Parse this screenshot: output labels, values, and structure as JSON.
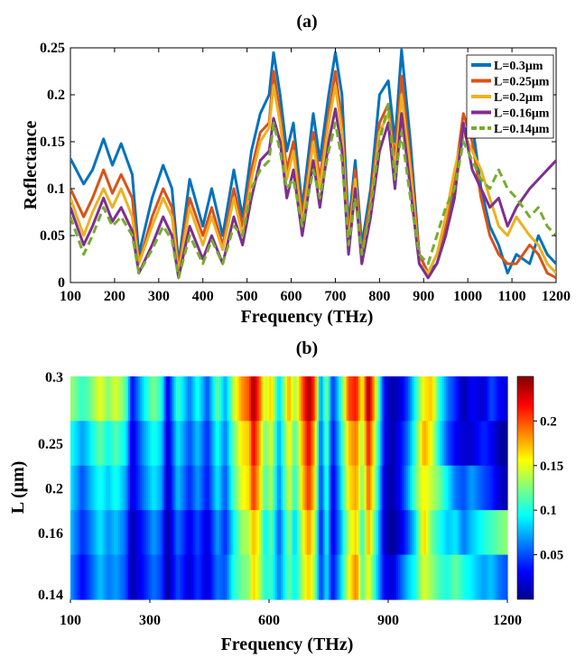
{
  "panel_a": {
    "label": "(a)",
    "chart_data": {
      "type": "line",
      "title": "",
      "xlabel": "Frequency (THz)",
      "ylabel": "Reflectance",
      "xlim": [
        100,
        1200
      ],
      "ylim": [
        0,
        0.25
      ],
      "xticks": [
        100,
        200,
        300,
        400,
        500,
        600,
        700,
        800,
        900,
        1000,
        1100,
        1200
      ],
      "yticks": [
        0,
        0.05,
        0.1,
        0.15,
        0.2,
        0.25
      ],
      "ytick_labels": [
        "0",
        "0.05",
        "0.1",
        "0.15",
        "0.2",
        "0.25"
      ],
      "legend_position": "top-right",
      "x": [
        100,
        130,
        150,
        175,
        195,
        215,
        240,
        255,
        285,
        310,
        330,
        345,
        370,
        400,
        420,
        445,
        470,
        490,
        510,
        530,
        550,
        560,
        575,
        590,
        605,
        625,
        650,
        665,
        685,
        700,
        715,
        730,
        745,
        760,
        780,
        800,
        820,
        835,
        850,
        870,
        890,
        910,
        930,
        950,
        970,
        990,
        1010,
        1030,
        1050,
        1070,
        1090,
        1110,
        1140,
        1160,
        1180,
        1200
      ],
      "series": [
        {
          "name": "L=0.3μm",
          "color": "#0072BD",
          "dash": false,
          "values": [
            0.132,
            0.105,
            0.12,
            0.153,
            0.125,
            0.148,
            0.115,
            0.03,
            0.09,
            0.125,
            0.1,
            0.02,
            0.11,
            0.06,
            0.1,
            0.05,
            0.12,
            0.07,
            0.14,
            0.18,
            0.2,
            0.245,
            0.2,
            0.14,
            0.17,
            0.08,
            0.18,
            0.13,
            0.2,
            0.245,
            0.2,
            0.06,
            0.13,
            0.04,
            0.1,
            0.2,
            0.215,
            0.15,
            0.248,
            0.15,
            0.03,
            0.01,
            0.02,
            0.05,
            0.1,
            0.16,
            0.17,
            0.1,
            0.06,
            0.04,
            0.01,
            0.03,
            0.02,
            0.05,
            0.03,
            0.02
          ]
        },
        {
          "name": "L=0.25μm",
          "color": "#D95319",
          "dash": false,
          "values": [
            0.1,
            0.07,
            0.09,
            0.12,
            0.095,
            0.115,
            0.09,
            0.02,
            0.07,
            0.1,
            0.08,
            0.015,
            0.09,
            0.05,
            0.08,
            0.04,
            0.1,
            0.06,
            0.12,
            0.16,
            0.17,
            0.225,
            0.18,
            0.12,
            0.15,
            0.07,
            0.16,
            0.11,
            0.18,
            0.225,
            0.17,
            0.05,
            0.12,
            0.03,
            0.09,
            0.17,
            0.19,
            0.13,
            0.22,
            0.13,
            0.03,
            0.01,
            0.03,
            0.06,
            0.11,
            0.18,
            0.15,
            0.09,
            0.05,
            0.03,
            0.02,
            0.02,
            0.04,
            0.03,
            0.01,
            0.005
          ]
        },
        {
          "name": "L=0.2μm",
          "color": "#EDB120",
          "dash": false,
          "values": [
            0.09,
            0.05,
            0.075,
            0.1,
            0.08,
            0.1,
            0.07,
            0.02,
            0.06,
            0.09,
            0.07,
            0.01,
            0.08,
            0.04,
            0.07,
            0.035,
            0.09,
            0.05,
            0.11,
            0.15,
            0.165,
            0.21,
            0.17,
            0.11,
            0.14,
            0.06,
            0.15,
            0.1,
            0.17,
            0.21,
            0.16,
            0.04,
            0.11,
            0.02,
            0.08,
            0.16,
            0.18,
            0.12,
            0.2,
            0.12,
            0.02,
            0.01,
            0.03,
            0.07,
            0.12,
            0.16,
            0.14,
            0.12,
            0.09,
            0.06,
            0.05,
            0.07,
            0.05,
            0.04,
            0.02,
            0.01
          ]
        },
        {
          "name": "L=0.16μm",
          "color": "#7E2F8E",
          "dash": false,
          "values": [
            0.08,
            0.04,
            0.06,
            0.09,
            0.065,
            0.08,
            0.055,
            0.01,
            0.04,
            0.07,
            0.05,
            0.005,
            0.06,
            0.025,
            0.05,
            0.02,
            0.07,
            0.04,
            0.09,
            0.13,
            0.14,
            0.175,
            0.15,
            0.09,
            0.12,
            0.05,
            0.13,
            0.08,
            0.15,
            0.185,
            0.14,
            0.03,
            0.1,
            0.02,
            0.07,
            0.14,
            0.17,
            0.1,
            0.18,
            0.1,
            0.02,
            0.005,
            0.02,
            0.05,
            0.09,
            0.17,
            0.12,
            0.1,
            0.08,
            0.09,
            0.06,
            0.08,
            0.1,
            0.11,
            0.12,
            0.13
          ]
        },
        {
          "name": "L=0.14μm",
          "color": "#77AC30",
          "dash": true,
          "values": [
            0.07,
            0.03,
            0.05,
            0.08,
            0.06,
            0.07,
            0.05,
            0.01,
            0.035,
            0.06,
            0.045,
            0.005,
            0.05,
            0.02,
            0.045,
            0.02,
            0.06,
            0.05,
            0.1,
            0.12,
            0.13,
            0.17,
            0.14,
            0.1,
            0.11,
            0.06,
            0.12,
            0.09,
            0.14,
            0.17,
            0.13,
            0.04,
            0.09,
            0.03,
            0.08,
            0.15,
            0.19,
            0.11,
            0.16,
            0.09,
            0.03,
            0.02,
            0.05,
            0.08,
            0.1,
            0.15,
            0.13,
            0.11,
            0.1,
            0.12,
            0.1,
            0.09,
            0.07,
            0.08,
            0.06,
            0.05
          ]
        }
      ]
    }
  },
  "panel_b": {
    "label": "(b)",
    "chart_data": {
      "type": "heatmap",
      "title": "",
      "xlabel": "Frequency (THz)",
      "ylabel": "L (μm)",
      "xlim": [
        100,
        1200
      ],
      "xticks": [
        100,
        300,
        600,
        900,
        1200
      ],
      "yticks": [
        "0.3",
        "0.25",
        "0.2",
        "0.16",
        "0.14"
      ],
      "y_levels": [
        0.3,
        0.25,
        0.2,
        0.16,
        0.14
      ],
      "colormap": "jet",
      "colorbar_range": [
        0,
        0.25
      ],
      "colorbar_ticks": [
        0.05,
        0.1,
        0.15,
        0.2
      ],
      "colorbar_tick_labels": [
        "0.05",
        "0.1",
        "0.15",
        "0.2"
      ],
      "source": "values per L level are the series of panel (a)"
    }
  }
}
